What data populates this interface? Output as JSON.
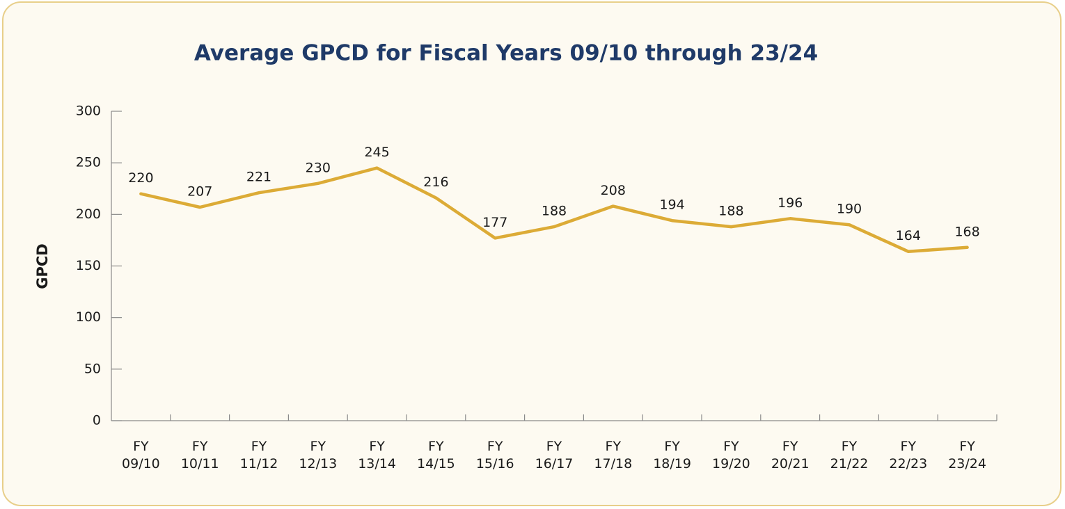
{
  "chart_data": {
    "type": "line",
    "title": "Average GPCD for Fiscal Years 09/10 through 23/24",
    "y_label": "GPCD",
    "categories": [
      "FY 09/10",
      "FY 10/11",
      "FY 11/12",
      "FY 12/13",
      "FY 13/14",
      "FY 14/15",
      "FY 15/16",
      "FY 16/17",
      "FY 17/18",
      "FY 18/19",
      "FY 19/20",
      "FY 20/21",
      "FY 21/22",
      "FY 22/23",
      "FY 23/24"
    ],
    "values": [
      220,
      207,
      221,
      230,
      245,
      216,
      177,
      188,
      208,
      194,
      188,
      196,
      190,
      164,
      168
    ],
    "color": "#dcab36",
    "ylim": [
      0,
      300
    ],
    "yticks": [
      0,
      50,
      100,
      150,
      200,
      250,
      300
    ]
  }
}
